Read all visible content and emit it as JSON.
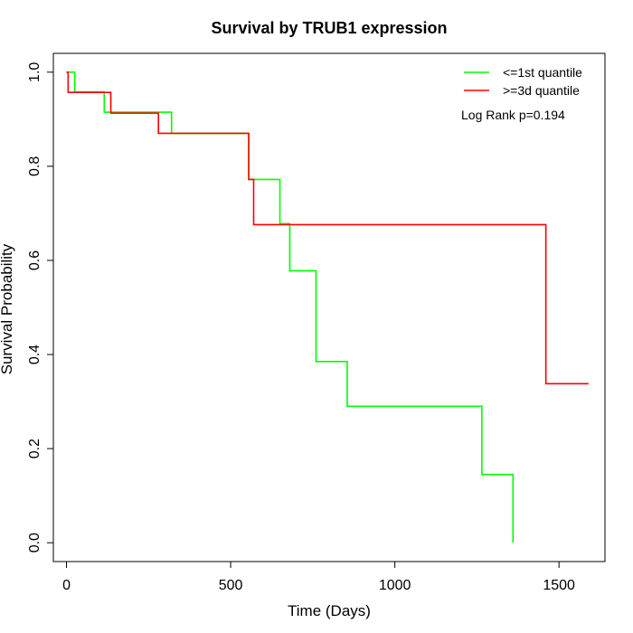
{
  "chart_data": {
    "type": "line",
    "title": "Survival by TRUB1 expression",
    "xlabel": "Time (Days)",
    "ylabel": "Survival Probability",
    "xlim": [
      -40,
      1640
    ],
    "ylim": [
      -0.04,
      1.04
    ],
    "xticks": [
      0,
      500,
      1000,
      1500
    ],
    "yticks": [
      0.0,
      0.2,
      0.4,
      0.6,
      0.8,
      1.0
    ],
    "xtick_labels": [
      "0",
      "500",
      "1000",
      "1500"
    ],
    "ytick_labels": [
      "0.0",
      "0.2",
      "0.4",
      "0.6",
      "0.8",
      "1.0"
    ],
    "grid": false,
    "legend_position": "top-right",
    "annotation": "Log Rank p=0.194",
    "series": [
      {
        "name": "<=1st quantile",
        "color": "#00ff00",
        "x": [
          0,
          25,
          115,
          320,
          555,
          650,
          680,
          760,
          855,
          1265,
          1360,
          1360
        ],
        "y": [
          1.0,
          0.958,
          0.915,
          0.87,
          0.772,
          0.678,
          0.578,
          0.385,
          0.29,
          0.145,
          0.145,
          0.0
        ]
      },
      {
        "name": ">=3d quantile",
        "color": "#ff0000",
        "x": [
          0,
          5,
          135,
          280,
          555,
          570,
          1460,
          1590
        ],
        "y": [
          1.0,
          0.957,
          0.913,
          0.87,
          0.772,
          0.676,
          0.338,
          0.338
        ]
      }
    ]
  }
}
